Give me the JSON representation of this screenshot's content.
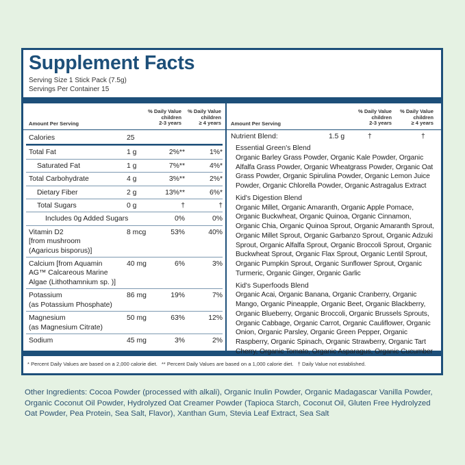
{
  "title": "Supplement Facts",
  "serving_size": "Serving Size 1 Stick Pack (7.5g)",
  "servings_per_container": "Servings Per Container 15",
  "left_header": {
    "amount": "Amount Per Serving",
    "dv_2_3": [
      "% Daily Value",
      "children",
      "2-3 years"
    ],
    "dv_4": [
      "% Daily Value",
      "children",
      "≥ 4 years"
    ]
  },
  "left_rows": [
    {
      "name": [
        "Calories"
      ],
      "amount": "25"
    },
    {
      "name": [
        "Total Fat"
      ],
      "amount": "1 g",
      "dv_2_3": "2%**",
      "dv_4": "1%*"
    },
    {
      "name": [
        "Saturated Fat"
      ],
      "indent": 1,
      "amount": "1 g",
      "dv_2_3": "7%**",
      "dv_4": "4%*"
    },
    {
      "name": [
        "Total Carbohydrate"
      ],
      "amount": "4 g",
      "dv_2_3": "3%**",
      "dv_4": "2%*"
    },
    {
      "name": [
        "Dietary Fiber"
      ],
      "indent": 1,
      "amount": "2 g",
      "dv_2_3": "13%**",
      "dv_4": "6%*"
    },
    {
      "name": [
        "Total Sugars"
      ],
      "indent": 1,
      "amount": "0 g",
      "dv_2_3": "†",
      "dv_4": "†"
    },
    {
      "name": [
        "Includes 0g Added Sugars"
      ],
      "indent": 2,
      "dv_2_3": "0%",
      "dv_4": "0%"
    },
    {
      "name": [
        "Vitamin D2",
        "[from mushroom",
        "(Agaricus bisporus)]"
      ],
      "amount": "8 mcg",
      "dv_2_3": "53%",
      "dv_4": "40%"
    },
    {
      "name": [
        "Calcium [from Aquamin",
        "AG™ Calcareous Marine",
        "Algae (Lithothamnium sp. )]"
      ],
      "amount": "40 mg",
      "dv_2_3": "6%",
      "dv_4": "3%"
    },
    {
      "name": [
        "Potassium",
        "(as Potassium Phosphate)"
      ],
      "amount": "86 mg",
      "dv_2_3": "19%",
      "dv_4": "7%"
    },
    {
      "name": [
        "Magnesium",
        "(as Magnesium Citrate)"
      ],
      "amount": "50 mg",
      "dv_2_3": "63%",
      "dv_4": "12%"
    },
    {
      "name": [
        "Sodium"
      ],
      "amount": "45 mg",
      "dv_2_3": "3%",
      "dv_4": "2%"
    }
  ],
  "right_header": {
    "amount": "Amount Per Serving",
    "dv_2_3": [
      "% Daily Value",
      "children",
      "2-3 years"
    ],
    "dv_4": [
      "% Daily Value",
      "children",
      "≥ 4 years"
    ]
  },
  "nutrient_blend": {
    "name": "Nutrient Blend:",
    "amount": "1.5 g",
    "dv_2_3": "†",
    "dv_4": "†"
  },
  "blends": [
    {
      "name": "Essential Green's Blend",
      "ingredients": "Organic Barley Grass Powder, Organic Kale Powder, Organic Alfalfa Grass Powder, Organic Wheatgrass Powder, Organic Oat Grass Powder, Organic Spirulina Powder, Organic Lemon Juice Powder, Organic Chlorella Powder, Organic Astragalus Extract"
    },
    {
      "name": "Kid's Digestion Blend",
      "ingredients": "Organic Millet, Organic Amaranth, Organic Apple Pomace, Organic Buckwheat, Organic Quinoa, Organic Cinnamon, Organic Chia, Organic Quinoa Sprout, Organic Amaranth Sprout, Organic Millet Sprout, Organic Garbanzo Sprout, Organic Adzuki Sprout, Organic Alfalfa Sprout, Organic Broccoli Sprout, Organic Buckwheat Sprout, Organic Flax Sprout, Organic Lentil Sprout, Organic Pumpkin Sprout, Organic Sunflower Sprout, Organic Turmeric, Organic Ginger, Organic Garlic"
    },
    {
      "name": "Kid's Superfoods Blend",
      "ingredients": "Organic Acai, Organic Banana, Organic Cranberry, Organic Mango, Organic Pineapple, Organic Beet, Organic Blackberry, Organic Blueberry, Organic Broccoli, Organic Brussels Sprouts, Organic Cabbage, Organic Carrot, Organic Cauliflower, Organic Onion, Organic Parsley, Organic Green Pepper, Organic Raspberry, Organic Spinach, Organic Strawberry, Organic Tart Cherry, Organic Tomato, Organic Asparagus, Organic Cucumber"
    }
  ],
  "footnotes": [
    "* Percent Daily Values are based on a 2,000 calorie diet.",
    "** Percent Daily Values are based on a 1,000 calorie diet.",
    "† Daily Value not established."
  ],
  "other_ingredients": "Other Ingredients: Cocoa Powder (processed with alkali), Organic Inulin Powder, Organic Madagascar Vanilla Powder, Organic Coconut Oil Powder, Hydrolyzed Oat Creamer Powder (Tapioca Starch, Coconut Oil, Gluten Free Hydrolyzed Oat Powder, Pea Protein, Sea Salt, Flavor), Xanthan Gum, Stevia Leaf Extract, Sea Salt"
}
